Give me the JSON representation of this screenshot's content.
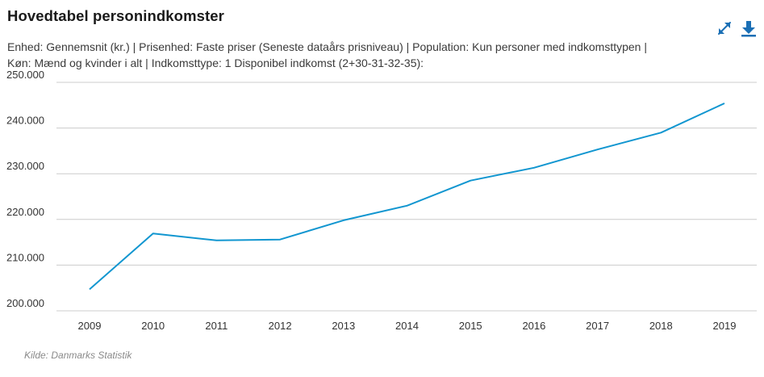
{
  "header": {
    "title": "Hovedtabel personindkomster",
    "subtitle_line1": "Enhed: Gennemsnit (kr.) | Prisenhed: Faste priser (Seneste dataårs prisniveau) | Population: Kun personer med indkomsttypen |",
    "subtitle_line2": "Køn: Mænd og kvinder i alt | Indkomsttype: 1 Disponibel indkomst (2+30-31-32-35):"
  },
  "toolbar": {
    "expand_icon": "expand-icon",
    "download_icon": "download-icon"
  },
  "footer": {
    "source": "Kilde: Danmarks Statistik"
  },
  "colors": {
    "line": "#1196d0",
    "grid": "#cccccc",
    "icon": "#1a6fb5"
  },
  "chart_data": {
    "type": "line",
    "title": "Hovedtabel personindkomster",
    "xlabel": "",
    "ylabel": "",
    "x": [
      "2009",
      "2010",
      "2011",
      "2012",
      "2013",
      "2014",
      "2015",
      "2016",
      "2017",
      "2018",
      "2019"
    ],
    "series": [
      {
        "values": [
          204700,
          216900,
          215400,
          215600,
          219800,
          223000,
          228500,
          231300,
          235300,
          239000,
          245400
        ]
      }
    ],
    "ylim": [
      200000,
      250000
    ],
    "y_ticks": [
      {
        "value": 200000,
        "label": "200.000"
      },
      {
        "value": 210000,
        "label": "210.000"
      },
      {
        "value": 220000,
        "label": "220.000"
      },
      {
        "value": 230000,
        "label": "230.000"
      },
      {
        "value": 240000,
        "label": "240.000"
      },
      {
        "value": 250000,
        "label": "250.000"
      }
    ],
    "grid": true,
    "legend": "none"
  }
}
